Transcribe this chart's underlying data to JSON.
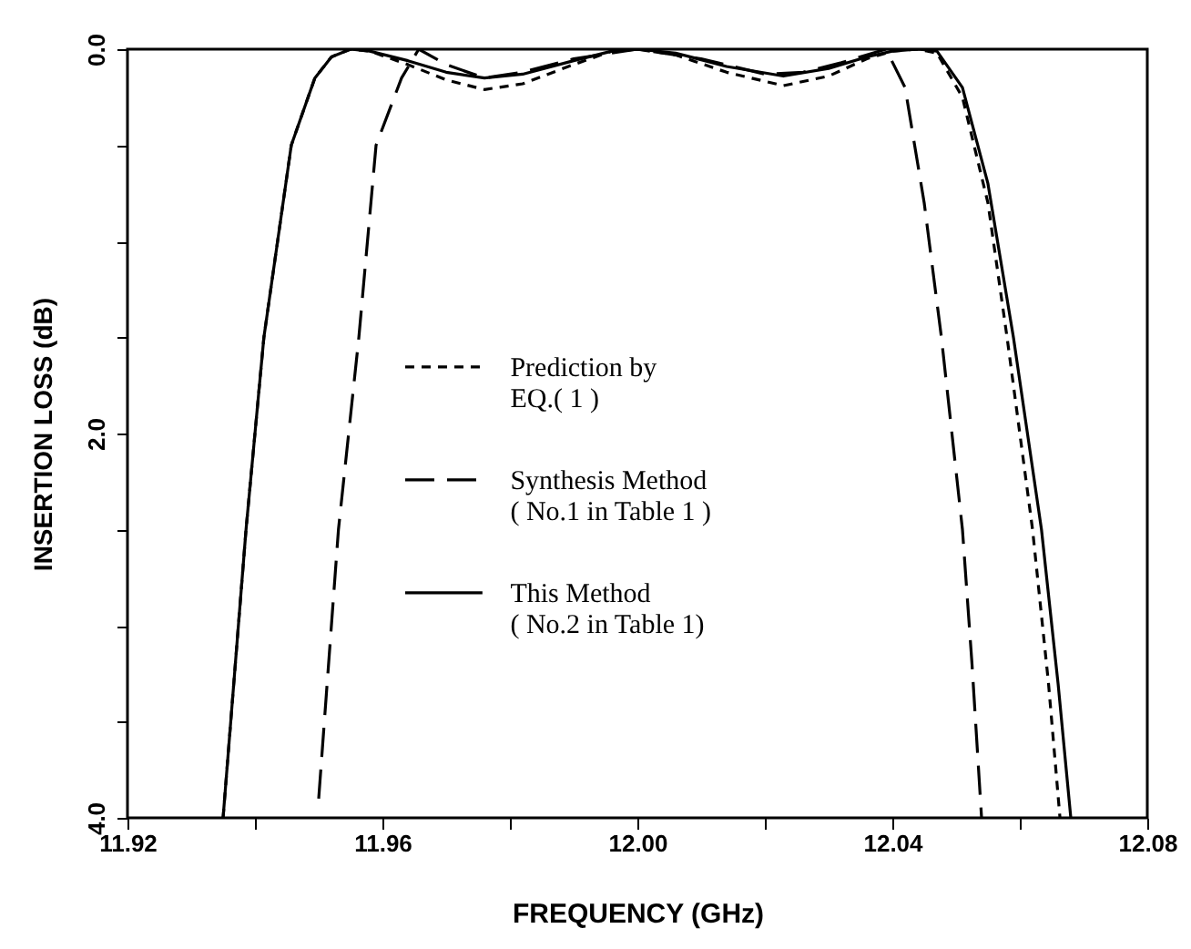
{
  "chart_data": {
    "type": "line",
    "xlabel": "FREQUENCY (GHz)",
    "ylabel": "INSERTION LOSS (dB)",
    "xlim": [
      11.92,
      12.08
    ],
    "ylim": [
      4.0,
      0.0
    ],
    "xticks": [
      11.92,
      {
        "value": 11.94,
        "label": null
      },
      11.96,
      {
        "value": 11.98,
        "label": null
      },
      {
        "value": 12.0,
        "label": "12.00"
      },
      {
        "value": 12.02,
        "label": null
      },
      12.04,
      {
        "value": 12.06,
        "label": null
      },
      12.08
    ],
    "yticks": [
      {
        "value": 0,
        "label": "0.0"
      },
      {
        "value": 0.5,
        "label": null
      },
      {
        "value": 1.0,
        "label": null
      },
      {
        "value": 1.5,
        "label": null
      },
      {
        "value": 2.0,
        "label": "2.0"
      },
      {
        "value": 2.5,
        "label": null
      },
      {
        "value": 3.0,
        "label": null
      },
      {
        "value": 3.5,
        "label": null
      },
      {
        "value": 4.0,
        "label": "4.0"
      }
    ],
    "grid": false,
    "legend": "center",
    "marker": "none",
    "series": [
      {
        "name": "Prediction by\nEQ.( 1 )",
        "color": "#000000",
        "line_style": "dotted",
        "x": [
          11.935,
          11.9386,
          11.9414,
          11.9457,
          11.9494,
          11.952,
          11.955,
          11.958,
          11.964,
          11.97,
          11.976,
          11.982,
          11.99,
          11.996,
          12.0,
          12.006,
          12.014,
          12.0229,
          12.03,
          12.036,
          12.04,
          12.044,
          12.047,
          12.051,
          12.055,
          12.058,
          12.062,
          12.0645,
          12.0663
        ],
        "values": [
          4.0,
          2.5,
          1.5,
          0.5,
          0.15,
          0.04,
          0.0,
          0.01,
          0.08,
          0.16,
          0.21,
          0.18,
          0.08,
          0.01,
          0.0,
          0.03,
          0.12,
          0.19,
          0.14,
          0.05,
          0.01,
          0.0,
          0.02,
          0.25,
          0.8,
          1.5,
          2.5,
          3.3,
          4.0
        ]
      },
      {
        "name": "Synthesis Method\n( No.1 in Table 1 )",
        "color": "#000000",
        "line_style": "dashed",
        "x": [
          11.95,
          11.9531,
          11.9563,
          11.959,
          11.963,
          11.9657,
          11.97,
          11.976,
          11.982,
          11.99,
          12.0,
          12.01,
          12.02,
          12.026,
          12.032,
          12.036,
          12.039,
          12.042,
          12.045,
          12.0477,
          12.051,
          12.0525,
          12.054
        ],
        "values": [
          3.9,
          2.5,
          1.5,
          0.5,
          0.15,
          0.0,
          0.08,
          0.15,
          0.12,
          0.05,
          0.0,
          0.05,
          0.13,
          0.12,
          0.07,
          0.03,
          0.0,
          0.2,
          0.8,
          1.5,
          2.5,
          3.2,
          4.0
        ]
      },
      {
        "name": "This  Method\n( No.2 in Table 1)",
        "color": "#000000",
        "line_style": "solid",
        "x": [
          11.935,
          11.9386,
          11.9414,
          11.9457,
          11.9494,
          11.952,
          11.955,
          11.958,
          11.964,
          11.97,
          11.976,
          11.982,
          11.99,
          11.996,
          12.0,
          12.006,
          12.014,
          12.0229,
          12.03,
          12.036,
          12.04,
          12.044,
          12.047,
          12.051,
          12.055,
          12.059,
          12.0634,
          12.066,
          12.068
        ],
        "values": [
          4.0,
          2.5,
          1.5,
          0.5,
          0.15,
          0.04,
          0.0,
          0.01,
          0.06,
          0.12,
          0.15,
          0.13,
          0.06,
          0.01,
          0.0,
          0.02,
          0.09,
          0.14,
          0.1,
          0.04,
          0.01,
          0.0,
          0.01,
          0.2,
          0.7,
          1.5,
          2.5,
          3.3,
          4.0
        ]
      }
    ]
  }
}
